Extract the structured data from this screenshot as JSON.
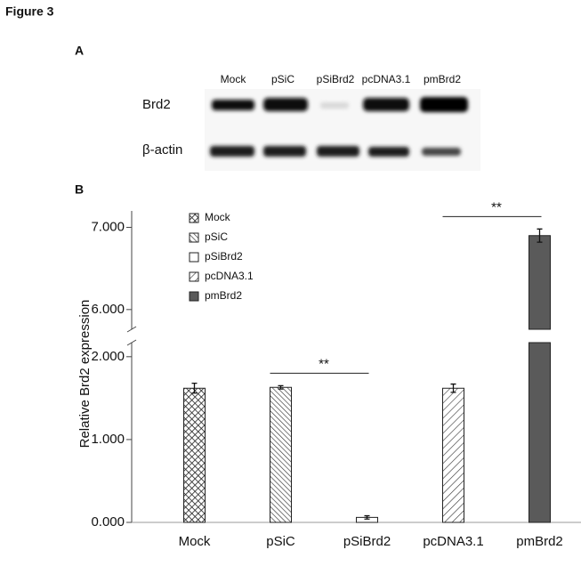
{
  "figure_title": "Figure 3",
  "panel_a": {
    "label": "A",
    "lanes": [
      "Mock",
      "pSiC",
      "pSiBrd2",
      "pcDNA3.1",
      "pmBrd2"
    ],
    "rows": [
      "Brd2",
      "β-actin"
    ]
  },
  "chart_data": {
    "type": "bar",
    "label": "B",
    "ylabel": "Relative Brd2 expression",
    "categories": [
      "Mock",
      "pSiC",
      "pSiBrd2",
      "pcDNA3.1",
      "pmBrd2"
    ],
    "values": [
      1.62,
      1.63,
      0.06,
      1.62,
      6.9
    ],
    "errors": [
      0.06,
      0.02,
      0.02,
      0.05,
      0.08
    ],
    "patterns": [
      "crosshatch",
      "backslash",
      "none",
      "slash",
      "solid"
    ],
    "color": "#5a5a5a",
    "ylim": [
      0,
      7.2
    ],
    "ybreak": [
      2.17,
      5.76
    ],
    "yticks": [
      {
        "value": 0,
        "label": "0.000"
      },
      {
        "value": 1,
        "label": "1.000"
      },
      {
        "value": 2,
        "label": "2.000"
      },
      {
        "value": 6,
        "label": "6.000"
      },
      {
        "value": 7,
        "label": "7.000"
      }
    ],
    "annotations": [
      {
        "text": "**",
        "between": [
          1,
          2
        ]
      },
      {
        "text": "**",
        "between": [
          3,
          4
        ]
      }
    ]
  }
}
